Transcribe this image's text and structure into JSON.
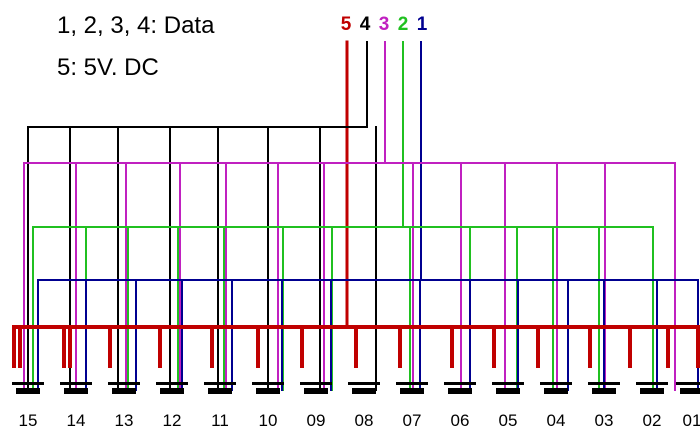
{
  "legend": {
    "line1": "1, 2, 3, 4: Data",
    "line2": "5: 5V. DC"
  },
  "pins": [
    {
      "label": "5",
      "color": "#c00000"
    },
    {
      "label": "4",
      "color": "#000000"
    },
    {
      "label": "3",
      "color": "#c020c0"
    },
    {
      "label": "2",
      "color": "#20c020"
    },
    {
      "label": "1",
      "color": "#000090"
    }
  ],
  "devices": [
    "15",
    "14",
    "13",
    "12",
    "11",
    "10",
    "09",
    "08",
    "07",
    "06",
    "05",
    "04",
    "03",
    "02",
    "01"
  ],
  "wire_colors": {
    "power": "#c00000",
    "data4": "#000000",
    "data3": "#c020c0",
    "data2": "#20c020",
    "data1": "#000090"
  }
}
